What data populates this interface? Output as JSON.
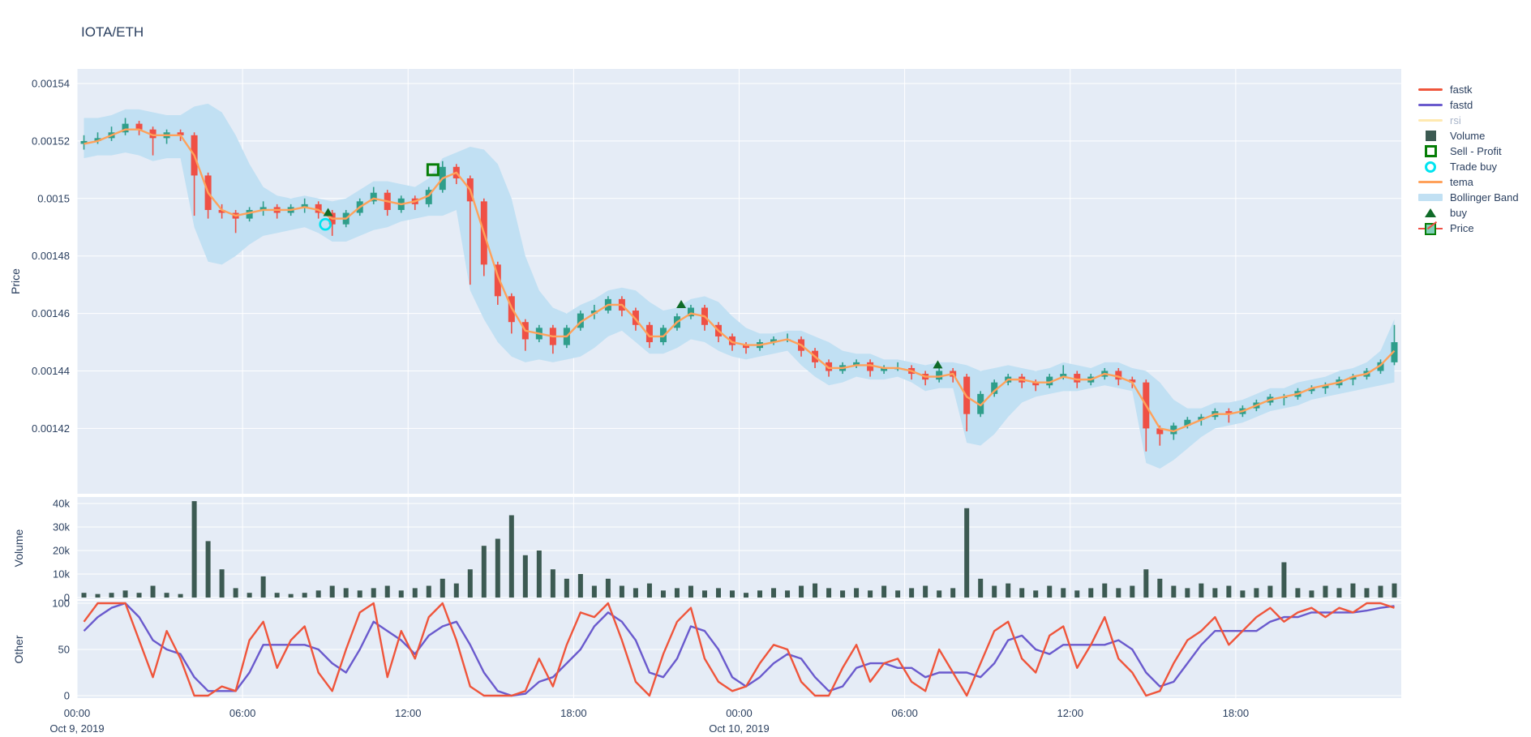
{
  "title": "IOTA/ETH",
  "colors": {
    "plot_bg": "#e5ecf6",
    "grid": "#ffffff",
    "text": "#2a3f5f",
    "muted_text": "#a8b4c8",
    "fastk": "#ef553b",
    "fastd": "#6a5acd",
    "rsi": "#ffe9b0",
    "volume": "#3c5a52",
    "sell": "#077e07",
    "trade_buy": "#00e4f0",
    "tema": "#ffa15a",
    "bollinger": "#c1e0f3",
    "buy": "#0f6b28",
    "candle_up": "#2f9e8b",
    "candle_down": "#ef5045"
  },
  "axes": {
    "price": {
      "title": "Price",
      "tick_labels": [
        "0.00154",
        "0.00152",
        "0.0015",
        "0.00148",
        "0.00146",
        "0.00144",
        "0.00142"
      ],
      "tick_values": [
        1540,
        1520,
        1500,
        1480,
        1460,
        1440,
        1420
      ]
    },
    "volume": {
      "title": "Volume",
      "tick_labels": [
        "40k",
        "30k",
        "20k",
        "10k",
        "0"
      ],
      "tick_values": [
        40,
        30,
        20,
        10,
        0
      ]
    },
    "other": {
      "title": "Other",
      "tick_labels": [
        "100",
        "50",
        "0"
      ],
      "tick_values": [
        100,
        50,
        0
      ]
    },
    "x": {
      "tick_labels": [
        "00:00",
        "06:00",
        "12:00",
        "18:00",
        "00:00",
        "06:00",
        "12:00",
        "18:00"
      ],
      "tick_hours": [
        0,
        6,
        12,
        18,
        24,
        30,
        36,
        42
      ],
      "date_labels": [
        {
          "label": "Oct 9, 2019",
          "hour": 0
        },
        {
          "label": "Oct 10, 2019",
          "hour": 24
        }
      ],
      "range_hours": [
        0,
        48
      ]
    }
  },
  "legend": [
    {
      "label": "fastk",
      "glyph": "line",
      "color": "#ef553b",
      "muted": false
    },
    {
      "label": "fastd",
      "glyph": "line",
      "color": "#6a5acd",
      "muted": false
    },
    {
      "label": "rsi",
      "glyph": "line",
      "color": "#ffe9b0",
      "muted": true
    },
    {
      "label": "Volume",
      "glyph": "square-filled",
      "color": "#3c5a52",
      "muted": false
    },
    {
      "label": "Sell - Profit",
      "glyph": "square-open",
      "color": "#077e07",
      "muted": false
    },
    {
      "label": "Trade buy",
      "glyph": "circle-open",
      "color": "#00e4f0",
      "muted": false
    },
    {
      "label": "tema",
      "glyph": "line",
      "color": "#ffa15a",
      "muted": false
    },
    {
      "label": "Bollinger Band",
      "glyph": "band",
      "color": "#c1e0f3",
      "muted": false
    },
    {
      "label": "buy",
      "glyph": "triangle",
      "color": "#0f6b28",
      "muted": false
    },
    {
      "label": "Price",
      "glyph": "candle",
      "color": "#2f9e8b",
      "muted": false
    }
  ],
  "chart_data": {
    "type": "candlestick",
    "symbol": "IOTA/ETH",
    "note": "prices stored as price x 1e-6 (e.g. 1520 = 0.00152); sampled at 0.5h steps from Oct 9 2019 00:00 to Oct 10 2019 23:30; volume in thousands; fastk/fastd 0-100",
    "interval_hours": 0.5,
    "price_scale": 1e-06,
    "price_axis_range": [
      1397,
      1545
    ],
    "volume_axis_range": [
      0,
      42
    ],
    "other_axis_range": [
      0,
      100
    ],
    "candles": [
      [
        1519,
        1522,
        1517,
        1520
      ],
      [
        1520,
        1523,
        1519,
        1521
      ],
      [
        1521,
        1525,
        1520,
        1523
      ],
      [
        1523,
        1528,
        1522,
        1526
      ],
      [
        1526,
        1527,
        1522,
        1524
      ],
      [
        1524,
        1525,
        1515,
        1521
      ],
      [
        1521,
        1524,
        1519,
        1523
      ],
      [
        1523,
        1524,
        1520,
        1522
      ],
      [
        1522,
        1523,
        1494,
        1508
      ],
      [
        1508,
        1509,
        1493,
        1496
      ],
      [
        1496,
        1498,
        1493,
        1495
      ],
      [
        1495,
        1496,
        1488,
        1493
      ],
      [
        1493,
        1497,
        1492,
        1496
      ],
      [
        1496,
        1499,
        1494,
        1497
      ],
      [
        1497,
        1498,
        1493,
        1495
      ],
      [
        1495,
        1498,
        1494,
        1497
      ],
      [
        1497,
        1500,
        1495,
        1498
      ],
      [
        1498,
        1499,
        1493,
        1495
      ],
      [
        1495,
        1496,
        1487,
        1491
      ],
      [
        1491,
        1496,
        1490,
        1495
      ],
      [
        1495,
        1500,
        1494,
        1499
      ],
      [
        1499,
        1504,
        1498,
        1502
      ],
      [
        1502,
        1503,
        1494,
        1496
      ],
      [
        1496,
        1501,
        1495,
        1500
      ],
      [
        1500,
        1501,
        1496,
        1498
      ],
      [
        1498,
        1504,
        1497,
        1503
      ],
      [
        1503,
        1513,
        1502,
        1511
      ],
      [
        1511,
        1512,
        1505,
        1507
      ],
      [
        1507,
        1508,
        1470,
        1499
      ],
      [
        1499,
        1500,
        1473,
        1477
      ],
      [
        1477,
        1478,
        1463,
        1466
      ],
      [
        1466,
        1467,
        1453,
        1457
      ],
      [
        1457,
        1458,
        1447,
        1451
      ],
      [
        1451,
        1456,
        1450,
        1455
      ],
      [
        1455,
        1456,
        1446,
        1449
      ],
      [
        1449,
        1456,
        1448,
        1455
      ],
      [
        1455,
        1461,
        1454,
        1460
      ],
      [
        1460,
        1463,
        1458,
        1461
      ],
      [
        1461,
        1466,
        1460,
        1465
      ],
      [
        1465,
        1466,
        1459,
        1461
      ],
      [
        1461,
        1462,
        1454,
        1456
      ],
      [
        1456,
        1457,
        1448,
        1450
      ],
      [
        1450,
        1456,
        1449,
        1455
      ],
      [
        1455,
        1460,
        1454,
        1459
      ],
      [
        1459,
        1463,
        1458,
        1462
      ],
      [
        1462,
        1463,
        1454,
        1456
      ],
      [
        1456,
        1457,
        1450,
        1452
      ],
      [
        1452,
        1453,
        1447,
        1449
      ],
      [
        1449,
        1450,
        1446,
        1448
      ],
      [
        1448,
        1451,
        1447,
        1450
      ],
      [
        1450,
        1452,
        1449,
        1451
      ],
      [
        1451,
        1453,
        1450,
        1451
      ],
      [
        1451,
        1452,
        1445,
        1447
      ],
      [
        1447,
        1448,
        1441,
        1443
      ],
      [
        1443,
        1444,
        1438,
        1440
      ],
      [
        1440,
        1443,
        1439,
        1442
      ],
      [
        1442,
        1444,
        1441,
        1443
      ],
      [
        1443,
        1444,
        1438,
        1440
      ],
      [
        1440,
        1442,
        1439,
        1441
      ],
      [
        1441,
        1443,
        1440,
        1441
      ],
      [
        1441,
        1442,
        1437,
        1439
      ],
      [
        1439,
        1440,
        1435,
        1437
      ],
      [
        1437,
        1441,
        1436,
        1440
      ],
      [
        1440,
        1441,
        1436,
        1438
      ],
      [
        1438,
        1439,
        1419,
        1425
      ],
      [
        1425,
        1433,
        1424,
        1432
      ],
      [
        1432,
        1437,
        1431,
        1436
      ],
      [
        1436,
        1439,
        1435,
        1438
      ],
      [
        1438,
        1439,
        1434,
        1436
      ],
      [
        1436,
        1437,
        1433,
        1435
      ],
      [
        1435,
        1439,
        1434,
        1438
      ],
      [
        1438,
        1442,
        1437,
        1439
      ],
      [
        1439,
        1440,
        1434,
        1436
      ],
      [
        1436,
        1439,
        1435,
        1438
      ],
      [
        1438,
        1441,
        1437,
        1440
      ],
      [
        1440,
        1441,
        1435,
        1437
      ],
      [
        1437,
        1438,
        1434,
        1436
      ],
      [
        1436,
        1437,
        1412,
        1420
      ],
      [
        1420,
        1421,
        1414,
        1418
      ],
      [
        1418,
        1422,
        1416,
        1421
      ],
      [
        1421,
        1424,
        1420,
        1423
      ],
      [
        1423,
        1425,
        1421,
        1424
      ],
      [
        1424,
        1427,
        1423,
        1426
      ],
      [
        1426,
        1427,
        1422,
        1425
      ],
      [
        1425,
        1428,
        1424,
        1427
      ],
      [
        1427,
        1430,
        1426,
        1429
      ],
      [
        1429,
        1432,
        1428,
        1431
      ],
      [
        1431,
        1432,
        1428,
        1431
      ],
      [
        1431,
        1434,
        1430,
        1433
      ],
      [
        1433,
        1435,
        1432,
        1434
      ],
      [
        1434,
        1436,
        1432,
        1435
      ],
      [
        1435,
        1438,
        1434,
        1437
      ],
      [
        1437,
        1439,
        1435,
        1438
      ],
      [
        1438,
        1441,
        1437,
        1440
      ],
      [
        1440,
        1444,
        1439,
        1443
      ],
      [
        1443,
        1456,
        1442,
        1450
      ]
    ],
    "bollinger_upper": [
      1528,
      1528,
      1529,
      1531,
      1531,
      1530,
      1529,
      1529,
      1532,
      1533,
      1530,
      1522,
      1512,
      1504,
      1501,
      1500,
      1501,
      1500,
      1499,
      1500,
      1503,
      1506,
      1506,
      1505,
      1504,
      1507,
      1514,
      1516,
      1518,
      1517,
      1512,
      1500,
      1480,
      1468,
      1462,
      1460,
      1463,
      1465,
      1468,
      1469,
      1468,
      1464,
      1461,
      1462,
      1465,
      1466,
      1464,
      1459,
      1455,
      1453,
      1453,
      1454,
      1454,
      1452,
      1450,
      1447,
      1446,
      1446,
      1444,
      1444,
      1443,
      1442,
      1443,
      1443,
      1442,
      1440,
      1441,
      1442,
      1441,
      1440,
      1441,
      1443,
      1442,
      1441,
      1443,
      1443,
      1441,
      1440,
      1436,
      1430,
      1427,
      1427,
      1429,
      1429,
      1430,
      1432,
      1434,
      1434,
      1436,
      1437,
      1438,
      1440,
      1441,
      1443,
      1447,
      1458
    ],
    "bollinger_lower": [
      1514,
      1515,
      1515,
      1516,
      1515,
      1513,
      1514,
      1514,
      1490,
      1478,
      1477,
      1480,
      1484,
      1487,
      1488,
      1489,
      1490,
      1488,
      1485,
      1485,
      1487,
      1489,
      1490,
      1492,
      1493,
      1494,
      1494,
      1496,
      1468,
      1458,
      1450,
      1445,
      1443,
      1444,
      1443,
      1444,
      1445,
      1448,
      1452,
      1454,
      1450,
      1446,
      1446,
      1448,
      1451,
      1450,
      1447,
      1445,
      1444,
      1445,
      1446,
      1447,
      1442,
      1438,
      1435,
      1436,
      1438,
      1437,
      1437,
      1438,
      1436,
      1433,
      1434,
      1434,
      1415,
      1414,
      1418,
      1424,
      1429,
      1431,
      1432,
      1433,
      1433,
      1434,
      1435,
      1434,
      1433,
      1408,
      1406,
      1409,
      1413,
      1417,
      1420,
      1421,
      1422,
      1424,
      1426,
      1427,
      1428,
      1430,
      1431,
      1432,
      1433,
      1434,
      1435,
      1436
    ],
    "tema": [
      1519,
      1520,
      1522,
      1524,
      1524,
      1522,
      1522,
      1522,
      1515,
      1502,
      1496,
      1494,
      1495,
      1496,
      1496,
      1496,
      1497,
      1496,
      1493,
      1493,
      1497,
      1500,
      1499,
      1498,
      1499,
      1501,
      1507,
      1509,
      1503,
      1488,
      1473,
      1462,
      1454,
      1453,
      1452,
      1452,
      1457,
      1460,
      1463,
      1463,
      1458,
      1452,
      1452,
      1457,
      1460,
      1459,
      1454,
      1450,
      1449,
      1449,
      1450,
      1451,
      1449,
      1445,
      1441,
      1441,
      1442,
      1442,
      1441,
      1441,
      1440,
      1438,
      1438,
      1439,
      1431,
      1428,
      1433,
      1437,
      1437,
      1436,
      1436,
      1438,
      1437,
      1437,
      1439,
      1438,
      1436,
      1428,
      1420,
      1419,
      1421,
      1423,
      1425,
      1425,
      1426,
      1428,
      1430,
      1431,
      1432,
      1434,
      1435,
      1436,
      1438,
      1439,
      1442,
      1447
    ],
    "volume_k": [
      2,
      1.5,
      2,
      3,
      2,
      5,
      2,
      1.5,
      41,
      24,
      12,
      4,
      2,
      9,
      2,
      1.5,
      2,
      3,
      5,
      4,
      3,
      4,
      5,
      3,
      4,
      5,
      8,
      6,
      12,
      22,
      25,
      35,
      18,
      20,
      12,
      8,
      10,
      5,
      8,
      5,
      4,
      6,
      3,
      4,
      5,
      3,
      4,
      3,
      2,
      3,
      4,
      3,
      5,
      6,
      4,
      3,
      4,
      3,
      5,
      3,
      4,
      5,
      3,
      4,
      38,
      8,
      5,
      6,
      4,
      3,
      5,
      4,
      3,
      4,
      6,
      4,
      5,
      12,
      8,
      5,
      4,
      6,
      4,
      5,
      3,
      4,
      5,
      15,
      4,
      3,
      5,
      4,
      6,
      4,
      5,
      6
    ],
    "fastk": [
      80,
      100,
      100,
      100,
      60,
      20,
      70,
      40,
      0,
      0,
      10,
      5,
      60,
      80,
      30,
      60,
      75,
      25,
      5,
      50,
      90,
      100,
      20,
      70,
      40,
      85,
      100,
      60,
      10,
      0,
      0,
      0,
      5,
      40,
      10,
      55,
      90,
      85,
      100,
      60,
      15,
      0,
      45,
      80,
      95,
      40,
      15,
      5,
      10,
      35,
      55,
      50,
      15,
      0,
      0,
      30,
      55,
      15,
      35,
      40,
      15,
      5,
      50,
      25,
      0,
      35,
      70,
      80,
      40,
      25,
      65,
      75,
      30,
      55,
      85,
      40,
      25,
      0,
      5,
      35,
      60,
      70,
      85,
      55,
      70,
      85,
      95,
      80,
      90,
      95,
      85,
      95,
      90,
      100,
      100,
      95
    ],
    "fastd": [
      70,
      85,
      95,
      100,
      85,
      60,
      50,
      45,
      20,
      5,
      5,
      5,
      25,
      55,
      55,
      55,
      55,
      50,
      35,
      25,
      50,
      80,
      70,
      60,
      45,
      65,
      75,
      80,
      55,
      25,
      5,
      0,
      2,
      15,
      20,
      35,
      50,
      75,
      90,
      80,
      60,
      25,
      20,
      40,
      75,
      70,
      50,
      20,
      10,
      20,
      35,
      45,
      40,
      20,
      5,
      10,
      30,
      35,
      35,
      30,
      30,
      20,
      25,
      25,
      25,
      20,
      35,
      60,
      65,
      50,
      45,
      55,
      55,
      55,
      55,
      60,
      50,
      25,
      10,
      15,
      35,
      55,
      70,
      70,
      70,
      70,
      80,
      85,
      85,
      90,
      90,
      90,
      90,
      92,
      95,
      97
    ],
    "rsi_visible": false,
    "markers": {
      "trade_buy": [
        {
          "hour": 9.0,
          "price": 1491
        }
      ],
      "sell_profit": [
        {
          "hour": 12.9,
          "price": 1510
        }
      ],
      "buy": [
        {
          "hour": 9.1,
          "price": 1495
        },
        {
          "hour": 21.9,
          "price": 1463
        },
        {
          "hour": 31.2,
          "price": 1442
        }
      ]
    }
  }
}
